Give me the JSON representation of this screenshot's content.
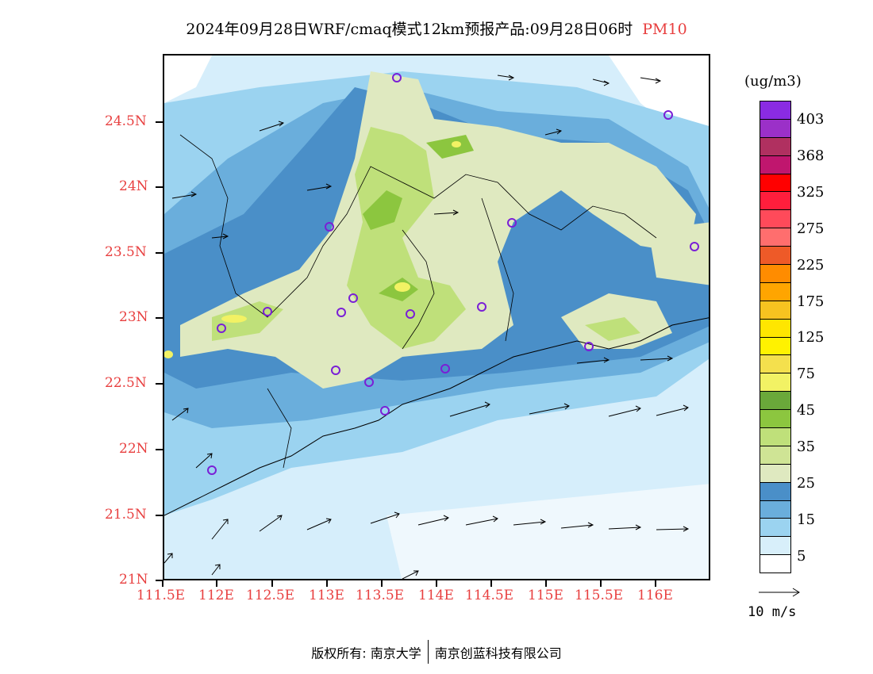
{
  "title": {
    "main": "2024年09月28日WRF/cmaq模式12km预报产品:09月28日06时",
    "variable": "PM10"
  },
  "y_ticks": [
    "24.5N",
    "24N",
    "23.5N",
    "23N",
    "22.5N",
    "22N",
    "21.5N",
    "21N"
  ],
  "x_ticks": [
    "111.5E",
    "112E",
    "112.5E",
    "113E",
    "113.5E",
    "114E",
    "114.5E",
    "115E",
    "115.5E",
    "116E"
  ],
  "legend": {
    "units": "(ug/m3)",
    "labels": [
      "403",
      "368",
      "325",
      "275",
      "225",
      "175",
      "125",
      "75",
      "45",
      "35",
      "25",
      "15",
      "5"
    ],
    "colors": [
      "#8a2be2",
      "#9b30c8",
      "#b03060",
      "#c0166e",
      "#ff0000",
      "#ff1e3c",
      "#ff4a5a",
      "#ff6e6e",
      "#ee5a28",
      "#ff8c00",
      "#ffa500",
      "#f7c320",
      "#ffe600",
      "#fff200",
      "#f4e04d",
      "#f2f264",
      "#6aa83a",
      "#8cc63f",
      "#bfe07a",
      "#cfe495",
      "#dfe9c0",
      "#4a8fc8",
      "#6aaedc",
      "#9bd3f0",
      "#d8effa",
      "#ffffff"
    ]
  },
  "wind_reference": {
    "label": "10 m/s"
  },
  "footer": {
    "copyright": "版权所有: 南京大学",
    "company": "南京创蓝科技有限公司"
  }
}
